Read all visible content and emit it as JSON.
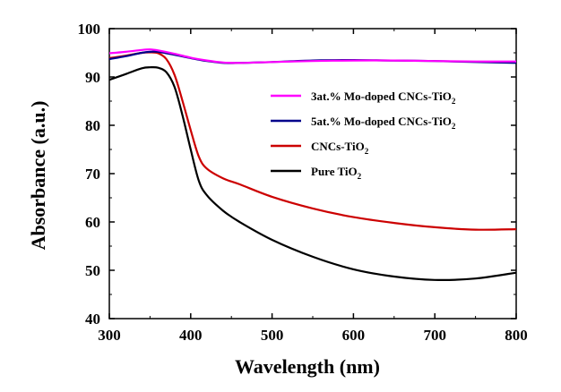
{
  "chart_data": {
    "type": "line",
    "xlabel": "Wavelength (nm)",
    "ylabel": "Absorbance (a.u.)",
    "xlim": [
      300,
      800
    ],
    "ylim": [
      40,
      100
    ],
    "xticks": [
      300,
      400,
      500,
      600,
      700,
      800
    ],
    "yticks": [
      40,
      50,
      60,
      70,
      80,
      90,
      100
    ],
    "grid": false,
    "legend_position": "center-right",
    "series": [
      {
        "name_main": "3at.% Mo-doped CNCs-TiO",
        "name_sub": "2",
        "color": "#ff00ff",
        "points": [
          [
            300,
            94.9
          ],
          [
            320,
            95.2
          ],
          [
            340,
            95.6
          ],
          [
            350,
            95.7
          ],
          [
            360,
            95.5
          ],
          [
            380,
            94.8
          ],
          [
            400,
            94.0
          ],
          [
            420,
            93.4
          ],
          [
            440,
            93.0
          ],
          [
            460,
            92.9
          ],
          [
            500,
            93.1
          ],
          [
            550,
            93.3
          ],
          [
            600,
            93.4
          ],
          [
            650,
            93.4
          ],
          [
            700,
            93.3
          ],
          [
            750,
            93.2
          ],
          [
            800,
            93.2
          ]
        ]
      },
      {
        "name_main": "5at.% Mo-doped CNCs-TiO",
        "name_sub": "2",
        "color": "#00008b",
        "points": [
          [
            300,
            93.7
          ],
          [
            320,
            94.3
          ],
          [
            340,
            95.0
          ],
          [
            350,
            95.2
          ],
          [
            360,
            95.2
          ],
          [
            380,
            94.6
          ],
          [
            400,
            93.9
          ],
          [
            420,
            93.3
          ],
          [
            440,
            92.9
          ],
          [
            460,
            92.9
          ],
          [
            500,
            93.1
          ],
          [
            550,
            93.4
          ],
          [
            600,
            93.5
          ],
          [
            650,
            93.4
          ],
          [
            700,
            93.3
          ],
          [
            750,
            93.1
          ],
          [
            800,
            92.9
          ]
        ]
      },
      {
        "name_main": "CNCs-TiO",
        "name_sub": "2",
        "color": "#cc0000",
        "points": [
          [
            300,
            93.9
          ],
          [
            320,
            94.4
          ],
          [
            340,
            95.0
          ],
          [
            350,
            95.1
          ],
          [
            360,
            94.9
          ],
          [
            370,
            93.7
          ],
          [
            380,
            90.5
          ],
          [
            390,
            85.0
          ],
          [
            400,
            79.0
          ],
          [
            410,
            73.5
          ],
          [
            420,
            71.0
          ],
          [
            440,
            69.0
          ],
          [
            460,
            67.8
          ],
          [
            500,
            65.2
          ],
          [
            550,
            62.8
          ],
          [
            600,
            61.0
          ],
          [
            650,
            59.8
          ],
          [
            700,
            58.9
          ],
          [
            750,
            58.4
          ],
          [
            800,
            58.5
          ]
        ]
      },
      {
        "name_main": "Pure TiO",
        "name_sub": "2",
        "color": "#000000",
        "points": [
          [
            300,
            89.4
          ],
          [
            320,
            90.6
          ],
          [
            340,
            91.8
          ],
          [
            350,
            92.0
          ],
          [
            360,
            91.9
          ],
          [
            370,
            91.0
          ],
          [
            380,
            88.0
          ],
          [
            390,
            82.0
          ],
          [
            400,
            75.0
          ],
          [
            410,
            68.5
          ],
          [
            420,
            65.5
          ],
          [
            440,
            62.3
          ],
          [
            460,
            60.0
          ],
          [
            500,
            56.3
          ],
          [
            550,
            52.8
          ],
          [
            600,
            50.2
          ],
          [
            650,
            48.7
          ],
          [
            700,
            48.0
          ],
          [
            750,
            48.3
          ],
          [
            800,
            49.5
          ]
        ]
      }
    ]
  }
}
